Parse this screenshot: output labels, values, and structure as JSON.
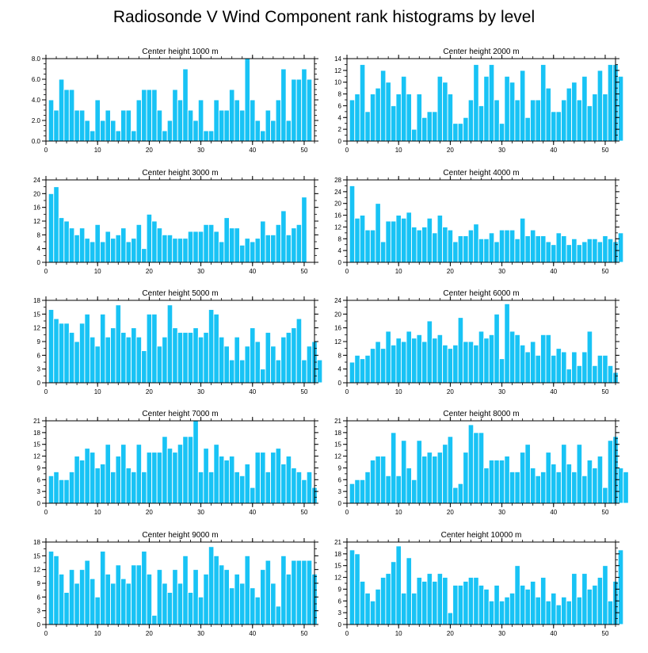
{
  "title": "Radiosonde V Wind Component rank histograms by level",
  "colors": {
    "bar": "#18c3f5",
    "bar_edge": "#ffffff",
    "axis": "#000000"
  },
  "chart_data": [
    {
      "type": "bar",
      "title": "Center height 1000 m",
      "ylim": [
        0,
        8
      ],
      "yticks": [
        0,
        2,
        4,
        6,
        8
      ],
      "ytick_labels": [
        "0.0",
        "2.0",
        "4.0",
        "6.0",
        "8.0"
      ],
      "yminor": 0.5,
      "xlim": [
        0,
        52
      ],
      "xticks": [
        0,
        10,
        20,
        30,
        40,
        50
      ],
      "values": [
        4,
        3,
        6,
        5,
        5,
        3,
        3,
        2,
        1,
        4,
        2,
        3,
        2,
        1,
        3,
        3,
        1,
        4,
        5,
        5,
        5,
        3,
        1,
        2,
        5,
        4,
        7,
        3,
        2,
        4,
        1,
        1,
        4,
        3,
        3,
        5,
        4,
        3,
        8,
        4,
        2,
        1,
        3,
        2,
        4,
        7,
        2,
        6,
        6,
        7,
        6
      ]
    },
    {
      "type": "bar",
      "title": "Center height 2000 m",
      "ylim": [
        0,
        14
      ],
      "yticks": [
        0,
        2,
        4,
        6,
        8,
        10,
        12,
        14
      ],
      "ytick_labels": [
        "0",
        "2",
        "4",
        "6",
        "8",
        "10",
        "12",
        "14"
      ],
      "yminor": 1,
      "xlim": [
        0,
        52
      ],
      "xticks": [
        0,
        10,
        20,
        30,
        40,
        50
      ],
      "values": [
        7,
        8,
        13,
        5,
        8,
        9,
        12,
        10,
        6,
        8,
        11,
        8,
        2,
        8,
        4,
        5,
        5,
        11,
        10,
        8,
        3,
        3,
        4,
        7,
        13,
        6,
        11,
        13,
        7,
        3,
        11,
        10,
        7,
        12,
        4,
        7,
        7,
        13,
        9,
        5,
        5,
        7,
        9,
        10,
        7,
        11,
        6,
        8,
        12,
        8,
        13,
        13,
        11
      ]
    },
    {
      "type": "bar",
      "title": "Center height 3000 m",
      "ylim": [
        0,
        24
      ],
      "yticks": [
        0,
        4,
        8,
        12,
        16,
        20,
        24
      ],
      "ytick_labels": [
        "0",
        "4",
        "8",
        "12",
        "16",
        "20",
        "24"
      ],
      "yminor": 2,
      "xlim": [
        0,
        52
      ],
      "xticks": [
        0,
        10,
        20,
        30,
        40,
        50
      ],
      "values": [
        20,
        22,
        13,
        12,
        10,
        8,
        10,
        7,
        6,
        11,
        6,
        9,
        7,
        8,
        10,
        6,
        7,
        11,
        4,
        14,
        12,
        10,
        8,
        8,
        7,
        7,
        7,
        9,
        9,
        9,
        11,
        11,
        9,
        6,
        13,
        10,
        10,
        5,
        7,
        6,
        7,
        12,
        8,
        8,
        11,
        15,
        8,
        10,
        11,
        19
      ]
    },
    {
      "type": "bar",
      "title": "Center height 4000 m",
      "ylim": [
        0,
        28
      ],
      "yticks": [
        0,
        4,
        8,
        12,
        16,
        20,
        24,
        28
      ],
      "ytick_labels": [
        "0",
        "4",
        "8",
        "12",
        "16",
        "20",
        "24",
        "28"
      ],
      "yminor": 2,
      "xlim": [
        0,
        52
      ],
      "xticks": [
        0,
        10,
        20,
        30,
        40,
        50
      ],
      "values": [
        26,
        15,
        16,
        11,
        11,
        20,
        7,
        14,
        14,
        16,
        15,
        17,
        12,
        11,
        12,
        15,
        10,
        16,
        12,
        11,
        7,
        9,
        9,
        11,
        13,
        8,
        8,
        10,
        7,
        11,
        11,
        11,
        8,
        15,
        9,
        11,
        9,
        9,
        7,
        6,
        10,
        9,
        6,
        8,
        6,
        7,
        8,
        8,
        7,
        9,
        8,
        7,
        10
      ]
    },
    {
      "type": "bar",
      "title": "Center height 5000 m",
      "ylim": [
        0,
        18
      ],
      "yticks": [
        0,
        3,
        6,
        9,
        12,
        15,
        18
      ],
      "ytick_labels": [
        "0",
        "3",
        "6",
        "9",
        "12",
        "15",
        "18"
      ],
      "yminor": 1.5,
      "xlim": [
        0,
        52
      ],
      "xticks": [
        0,
        10,
        20,
        30,
        40,
        50
      ],
      "values": [
        16,
        14,
        13,
        13,
        11,
        9,
        13,
        15,
        10,
        8,
        15,
        10,
        12,
        17,
        11,
        10,
        12,
        10,
        7,
        15,
        15,
        8,
        10,
        17,
        12,
        11,
        11,
        11,
        12,
        10,
        11,
        16,
        15,
        10,
        8,
        5,
        10,
        5,
        8,
        12,
        9,
        3,
        11,
        8,
        5,
        10,
        11,
        12,
        14,
        5,
        8,
        9,
        5
      ]
    },
    {
      "type": "bar",
      "title": "Center height 6000 m",
      "ylim": [
        0,
        24
      ],
      "yticks": [
        0,
        4,
        8,
        12,
        16,
        20,
        24
      ],
      "ytick_labels": [
        "0",
        "4",
        "8",
        "12",
        "16",
        "20",
        "24"
      ],
      "yminor": 2,
      "xlim": [
        0,
        52
      ],
      "xticks": [
        0,
        10,
        20,
        30,
        40,
        50
      ],
      "values": [
        6,
        8,
        7,
        8,
        10,
        12,
        10,
        15,
        11,
        13,
        12,
        15,
        13,
        14,
        12,
        18,
        13,
        14,
        11,
        10,
        11,
        19,
        12,
        12,
        11,
        15,
        13,
        14,
        20,
        7,
        23,
        15,
        14,
        11,
        9,
        12,
        8,
        14,
        14,
        8,
        10,
        9,
        4,
        9,
        5,
        9,
        15,
        5,
        8,
        8,
        5,
        3
      ]
    },
    {
      "type": "bar",
      "title": "Center height 7000 m",
      "ylim": [
        0,
        21
      ],
      "yticks": [
        0,
        3,
        6,
        9,
        12,
        15,
        18,
        21
      ],
      "ytick_labels": [
        "0",
        "3",
        "6",
        "9",
        "12",
        "15",
        "18",
        "21"
      ],
      "yminor": 1.5,
      "xlim": [
        0,
        52
      ],
      "xticks": [
        0,
        10,
        20,
        30,
        40,
        50
      ],
      "values": [
        7,
        8,
        6,
        6,
        8,
        12,
        11,
        14,
        13,
        9,
        10,
        15,
        8,
        12,
        15,
        9,
        8,
        15,
        8,
        13,
        13,
        13,
        17,
        14,
        13,
        15,
        17,
        17,
        21,
        8,
        14,
        8,
        15,
        12,
        11,
        12,
        8,
        7,
        10,
        4,
        13,
        13,
        8,
        13,
        14,
        10,
        12,
        9,
        8,
        6,
        8,
        4
      ]
    },
    {
      "type": "bar",
      "title": "Center height 8000 m",
      "ylim": [
        0,
        21
      ],
      "yticks": [
        0,
        3,
        6,
        9,
        12,
        15,
        18,
        21
      ],
      "ytick_labels": [
        "0",
        "3",
        "6",
        "9",
        "12",
        "15",
        "18",
        "21"
      ],
      "yminor": 1.5,
      "xlim": [
        0,
        52
      ],
      "xticks": [
        0,
        10,
        20,
        30,
        40,
        50
      ],
      "values": [
        5,
        6,
        6,
        8,
        11,
        12,
        12,
        7,
        18,
        7,
        16,
        9,
        6,
        16,
        12,
        13,
        12,
        13,
        15,
        17,
        4,
        5,
        13,
        20,
        18,
        18,
        9,
        11,
        11,
        11,
        12,
        8,
        8,
        13,
        15,
        9,
        7,
        8,
        13,
        10,
        8,
        15,
        10,
        8,
        15,
        7,
        11,
        9,
        12,
        4,
        16,
        17,
        9,
        8
      ]
    },
    {
      "type": "bar",
      "title": "Center height 9000 m",
      "ylim": [
        0,
        18
      ],
      "yticks": [
        0,
        3,
        6,
        9,
        12,
        15,
        18
      ],
      "ytick_labels": [
        "0",
        "3",
        "6",
        "9",
        "12",
        "15",
        "18"
      ],
      "yminor": 1.5,
      "xlim": [
        0,
        52
      ],
      "xticks": [
        0,
        10,
        20,
        30,
        40,
        50
      ],
      "values": [
        16,
        15,
        11,
        7,
        12,
        9,
        12,
        14,
        10,
        6,
        16,
        11,
        9,
        13,
        10,
        9,
        13,
        13,
        16,
        11,
        2,
        12,
        9,
        7,
        12,
        9,
        15,
        7,
        12,
        6,
        11,
        17,
        15,
        13,
        12,
        8,
        11,
        9,
        15,
        8,
        6,
        12,
        14,
        9,
        4,
        15,
        11,
        14,
        14,
        14,
        14,
        11
      ]
    },
    {
      "type": "bar",
      "title": "Center height 10000 m",
      "ylim": [
        0,
        21
      ],
      "yticks": [
        0,
        3,
        6,
        9,
        12,
        15,
        18,
        21
      ],
      "ytick_labels": [
        "0",
        "3",
        "6",
        "9",
        "12",
        "15",
        "18",
        "21"
      ],
      "yminor": 1.5,
      "xlim": [
        0,
        52
      ],
      "xticks": [
        0,
        10,
        20,
        30,
        40,
        50
      ],
      "values": [
        19,
        18,
        11,
        8,
        6,
        9,
        12,
        13,
        16,
        20,
        8,
        17,
        8,
        12,
        11,
        13,
        11,
        13,
        12,
        3,
        10,
        10,
        11,
        12,
        12,
        10,
        9,
        6,
        10,
        6,
        7,
        8,
        15,
        10,
        9,
        11,
        7,
        12,
        6,
        8,
        5,
        7,
        6,
        13,
        7,
        13,
        9,
        10,
        12,
        15,
        6,
        11,
        19
      ]
    }
  ]
}
